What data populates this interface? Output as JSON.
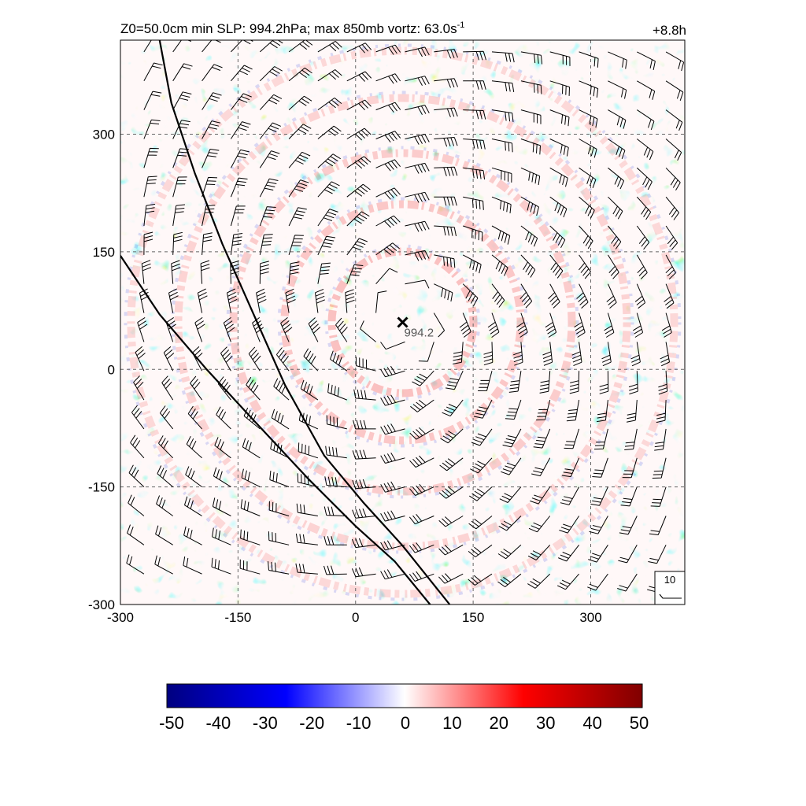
{
  "chart_data": {
    "type": "heatmap",
    "title": "Z0=50.0cm  min SLP: 994.2hPa; max 850mb vortz:  63.0s",
    "title_superscript": "-1",
    "time_label": "+8.8h",
    "x_ticks": [
      -300,
      -150,
      0,
      150,
      300
    ],
    "y_ticks": [
      300,
      150,
      0,
      -150,
      -300
    ],
    "xlim": [
      -300,
      420
    ],
    "ylim": [
      -300,
      420
    ],
    "grid": true,
    "grid_values": [
      -150,
      0,
      150,
      300
    ],
    "min_pressure": {
      "x": 60,
      "y": 60,
      "label": "994.2",
      "marker": "x-mark"
    },
    "coastlines": [
      {
        "name": "",
        "points": [
          [
            -250,
            420
          ],
          [
            -235,
            340
          ],
          [
            -205,
            250
          ],
          [
            -170,
            160
          ],
          [
            -130,
            70
          ],
          [
            -90,
            -20
          ],
          [
            -40,
            -110
          ],
          [
            10,
            -170
          ],
          [
            60,
            -225
          ],
          [
            120,
            -300
          ]
        ]
      },
      {
        "name": "",
        "points": [
          [
            -300,
            145
          ],
          [
            -250,
            70
          ],
          [
            -190,
            0
          ],
          [
            -130,
            -65
          ],
          [
            -60,
            -140
          ],
          [
            0,
            -200
          ],
          [
            50,
            -245
          ],
          [
            95,
            -300
          ]
        ]
      }
    ],
    "vortex_center": [
      60,
      60
    ],
    "barb_spacing": 37,
    "reference_barb": {
      "label": "10"
    },
    "colorbar": {
      "ticks": [
        "-50",
        "-40",
        "-30",
        "-20",
        "-10",
        "0",
        "10",
        "20",
        "30",
        "40",
        "50"
      ],
      "min": -50,
      "max": 50,
      "colors": [
        "#000080",
        "#0000ff",
        "#ffffff",
        "#ff0000",
        "#800000"
      ]
    }
  }
}
